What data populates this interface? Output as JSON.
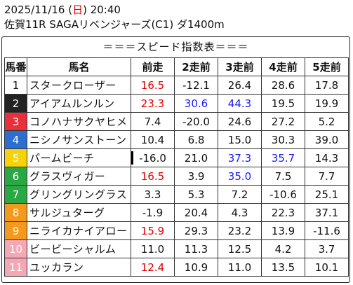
{
  "header": {
    "date_prefix": "2025/11/16 (",
    "day": "日",
    "date_suffix": ") 20:40",
    "race": "佐賀11R SAGAリベンジャーズ(C1) ダ1400m"
  },
  "table": {
    "title": "＝＝＝スピード指数表＝＝＝",
    "headers": [
      "馬番",
      "馬名",
      "前走",
      "2走前",
      "3走前",
      "4走前",
      "5走前"
    ],
    "rows": [
      {
        "no": "1",
        "name": "スタークローザー",
        "v": [
          "16.5",
          "-12.1",
          "26.4",
          "28.6",
          "17.8"
        ],
        "st": [
          "red",
          "",
          "",
          "",
          ""
        ]
      },
      {
        "no": "2",
        "name": "アイアムルンルン",
        "v": [
          "23.3",
          "30.6",
          "44.3",
          "19.5",
          "19.9"
        ],
        "st": [
          "redb",
          "blue",
          "blueb",
          "",
          ""
        ]
      },
      {
        "no": "3",
        "name": "コノハナサクヤヒメ",
        "v": [
          "7.4",
          "-20.0",
          "24.6",
          "27.2",
          "5.2"
        ],
        "st": [
          "",
          "",
          "",
          "",
          ""
        ]
      },
      {
        "no": "4",
        "name": "ニシノサンストーン",
        "v": [
          "10.4",
          "6.8",
          "15.0",
          "30.3",
          "39.0"
        ],
        "st": [
          "",
          "",
          "",
          "",
          ""
        ]
      },
      {
        "no": "5",
        "name": "パームビーチ",
        "v": [
          "-16.0",
          "21.0",
          "37.3",
          "35.7",
          "14.3"
        ],
        "st": [
          "",
          "",
          "blue",
          "blue",
          ""
        ]
      },
      {
        "no": "6",
        "name": "グラスヴィガー",
        "v": [
          "16.5",
          "3.9",
          "35.0",
          "7.5",
          "7.7"
        ],
        "st": [
          "red",
          "",
          "blue",
          "",
          ""
        ]
      },
      {
        "no": "7",
        "name": "グリングリングラス",
        "v": [
          "3.3",
          "5.3",
          "7.2",
          "-10.6",
          "25.1"
        ],
        "st": [
          "",
          "",
          "",
          "",
          ""
        ]
      },
      {
        "no": "8",
        "name": "サルジュターグ",
        "v": [
          "-1.9",
          "20.4",
          "4.3",
          "22.3",
          "37.1"
        ],
        "st": [
          "",
          "",
          "",
          "",
          ""
        ]
      },
      {
        "no": "9",
        "name": "ニライカナイアロー",
        "v": [
          "15.9",
          "29.3",
          "23.2",
          "13.9",
          "-11.6"
        ],
        "st": [
          "red",
          "",
          "",
          "",
          ""
        ]
      },
      {
        "no": "10",
        "name": "ビービーシャルム",
        "v": [
          "11.0",
          "11.3",
          "12.5",
          "4.2",
          "3.7"
        ],
        "st": [
          "",
          "",
          "",
          "",
          ""
        ]
      },
      {
        "no": "11",
        "name": "ユッカラン",
        "v": [
          "12.4",
          "10.9",
          "11.0",
          "13.5",
          "10.1"
        ],
        "st": [
          "red",
          "",
          "",
          "",
          ""
        ]
      }
    ],
    "gate_colors": [
      {
        "bg": "#ffffff",
        "fg": "#111111"
      },
      {
        "bg": "#222222",
        "fg": "#ffffff"
      },
      {
        "bg": "#e8303a",
        "fg": "#ffffff"
      },
      {
        "bg": "#2d6fd0",
        "fg": "#ffffff"
      },
      {
        "bg": "#f5d20a",
        "fg": "#ffffff"
      },
      {
        "bg": "#29a844",
        "fg": "#ffffff"
      },
      {
        "bg": "#29a844",
        "fg": "#ffffff"
      },
      {
        "bg": "#f39a1e",
        "fg": "#ffffff"
      },
      {
        "bg": "#f39a1e",
        "fg": "#ffffff"
      },
      {
        "bg": "#f4a7b4",
        "fg": "#ffffff"
      },
      {
        "bg": "#f4a7b4",
        "fg": "#ffffff"
      }
    ]
  }
}
